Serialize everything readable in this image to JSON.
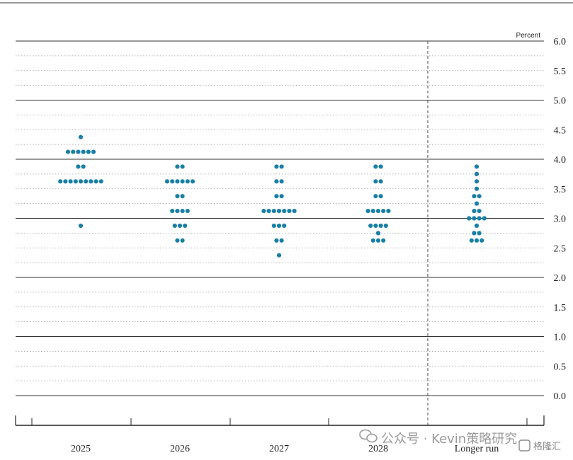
{
  "chart_data": {
    "type": "scatter",
    "unit_label": "Percent",
    "y_ticks": [
      "6.0",
      "5.5",
      "5.0",
      "4.5",
      "4.0",
      "3.5",
      "3.0",
      "2.5",
      "2.0",
      "1.5",
      "1.0",
      "0.5",
      "0.0"
    ],
    "ylim": [
      0,
      6
    ],
    "categories": [
      "2025",
      "2026",
      "2027",
      "2028",
      "Longer run"
    ],
    "series": [
      {
        "category": "2025",
        "dots": [
          {
            "y": 4.375,
            "n": 1
          },
          {
            "y": 4.125,
            "n": 6
          },
          {
            "y": 3.875,
            "n": 2
          },
          {
            "y": 3.625,
            "n": 9
          },
          {
            "y": 2.875,
            "n": 1
          }
        ]
      },
      {
        "category": "2026",
        "dots": [
          {
            "y": 3.875,
            "n": 2
          },
          {
            "y": 3.625,
            "n": 6
          },
          {
            "y": 3.375,
            "n": 2
          },
          {
            "y": 3.125,
            "n": 4
          },
          {
            "y": 2.875,
            "n": 3
          },
          {
            "y": 2.625,
            "n": 2
          }
        ]
      },
      {
        "category": "2027",
        "dots": [
          {
            "y": 3.875,
            "n": 2
          },
          {
            "y": 3.625,
            "n": 2
          },
          {
            "y": 3.375,
            "n": 2
          },
          {
            "y": 3.125,
            "n": 7
          },
          {
            "y": 2.875,
            "n": 3
          },
          {
            "y": 2.625,
            "n": 2
          },
          {
            "y": 2.375,
            "n": 1
          }
        ]
      },
      {
        "category": "2028",
        "dots": [
          {
            "y": 3.875,
            "n": 2
          },
          {
            "y": 3.625,
            "n": 2
          },
          {
            "y": 3.375,
            "n": 2
          },
          {
            "y": 3.125,
            "n": 5
          },
          {
            "y": 2.875,
            "n": 4
          },
          {
            "y": 2.75,
            "n": 1
          },
          {
            "y": 2.625,
            "n": 3
          }
        ]
      },
      {
        "category": "Longer run",
        "dots": [
          {
            "y": 3.875,
            "n": 1
          },
          {
            "y": 3.75,
            "n": 1
          },
          {
            "y": 3.625,
            "n": 1
          },
          {
            "y": 3.5,
            "n": 1
          },
          {
            "y": 3.375,
            "n": 2
          },
          {
            "y": 3.25,
            "n": 1
          },
          {
            "y": 3.125,
            "n": 2
          },
          {
            "y": 3.0,
            "n": 4
          },
          {
            "y": 2.875,
            "n": 1
          },
          {
            "y": 2.75,
            "n": 2
          },
          {
            "y": 2.625,
            "n": 3
          }
        ]
      }
    ],
    "dot_color": "#1a7fa4",
    "grid": "solid at whole percents, dotted at quarter and half percents",
    "divider": "dashed vertical line before Longer run"
  },
  "watermark": {
    "text": "公众号 · Kevin策略研究",
    "badge": "格隆汇"
  }
}
